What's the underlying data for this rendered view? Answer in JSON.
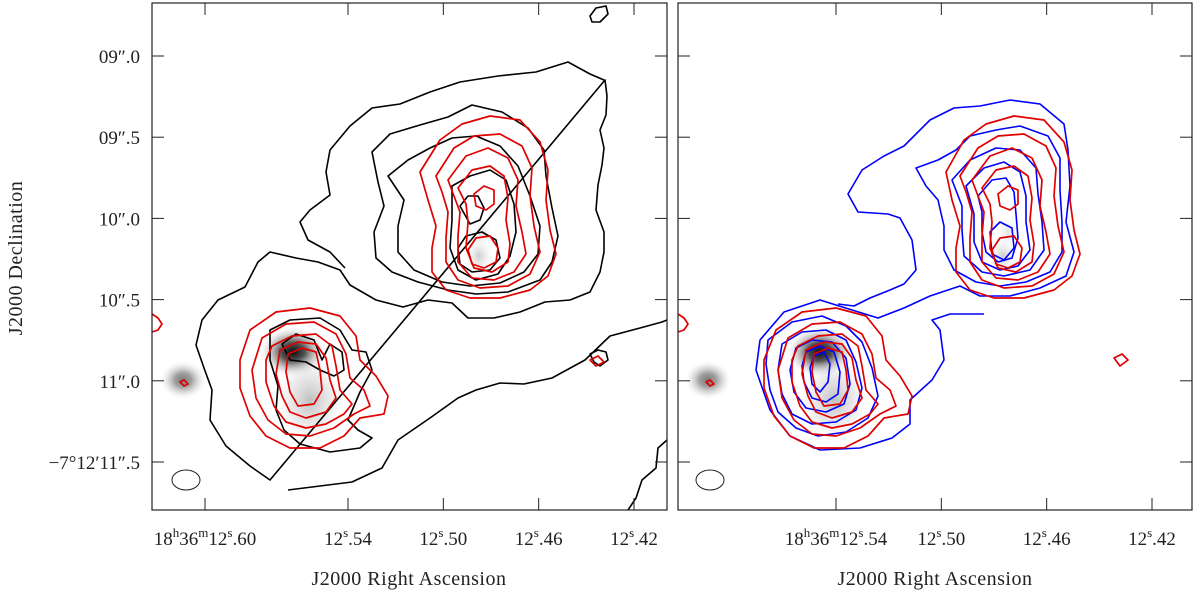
{
  "chart_data": [
    {
      "type": "contour",
      "panel": "left",
      "xlabel": "J2000 Right Ascension",
      "ylabel": "J2000 Declination",
      "x_ticks": [
        {
          "value": 12.6,
          "label_main": "18",
          "label_parts": [
            "h",
            "36",
            "m",
            "12",
            "s",
            ".60"
          ]
        },
        {
          "value": 12.54,
          "label_main": "12",
          "label_parts": [
            "s",
            ".54"
          ]
        },
        {
          "value": 12.5,
          "label_main": "12",
          "label_parts": [
            "s",
            ".50"
          ]
        },
        {
          "value": 12.46,
          "label_main": "12",
          "label_parts": [
            "s",
            ".46"
          ]
        },
        {
          "value": 12.42,
          "label_main": "12",
          "label_parts": [
            "s",
            ".42"
          ]
        }
      ],
      "y_ticks": [
        {
          "value": 9.0,
          "label": "09″.0"
        },
        {
          "value": 9.5,
          "label": "09″.5"
        },
        {
          "value": 10.0,
          "label": "10″.0"
        },
        {
          "value": 10.5,
          "label": "10″.5"
        },
        {
          "value": 11.0,
          "label": "11″.0"
        },
        {
          "value": 11.5,
          "label": "−7°12′11″.5"
        }
      ],
      "series_colors": {
        "contour_a": "#000000",
        "contour_b": "#e00000"
      }
    },
    {
      "type": "contour",
      "panel": "right",
      "xlabel": "J2000 Right Ascension",
      "x_ticks": [
        {
          "value": 12.54,
          "label_main": "18",
          "label_parts": [
            "h",
            "36",
            "m",
            "12",
            "s",
            ".54"
          ]
        },
        {
          "value": 12.5,
          "label_main": "12",
          "label_parts": [
            "s",
            ".50"
          ]
        },
        {
          "value": 12.46,
          "label_main": "12",
          "label_parts": [
            "s",
            ".46"
          ]
        },
        {
          "value": 12.42,
          "label_main": "12",
          "label_parts": [
            "s",
            ".42"
          ]
        }
      ],
      "series_colors": {
        "contour_a": "#0000ff",
        "contour_b": "#e00000"
      }
    }
  ]
}
